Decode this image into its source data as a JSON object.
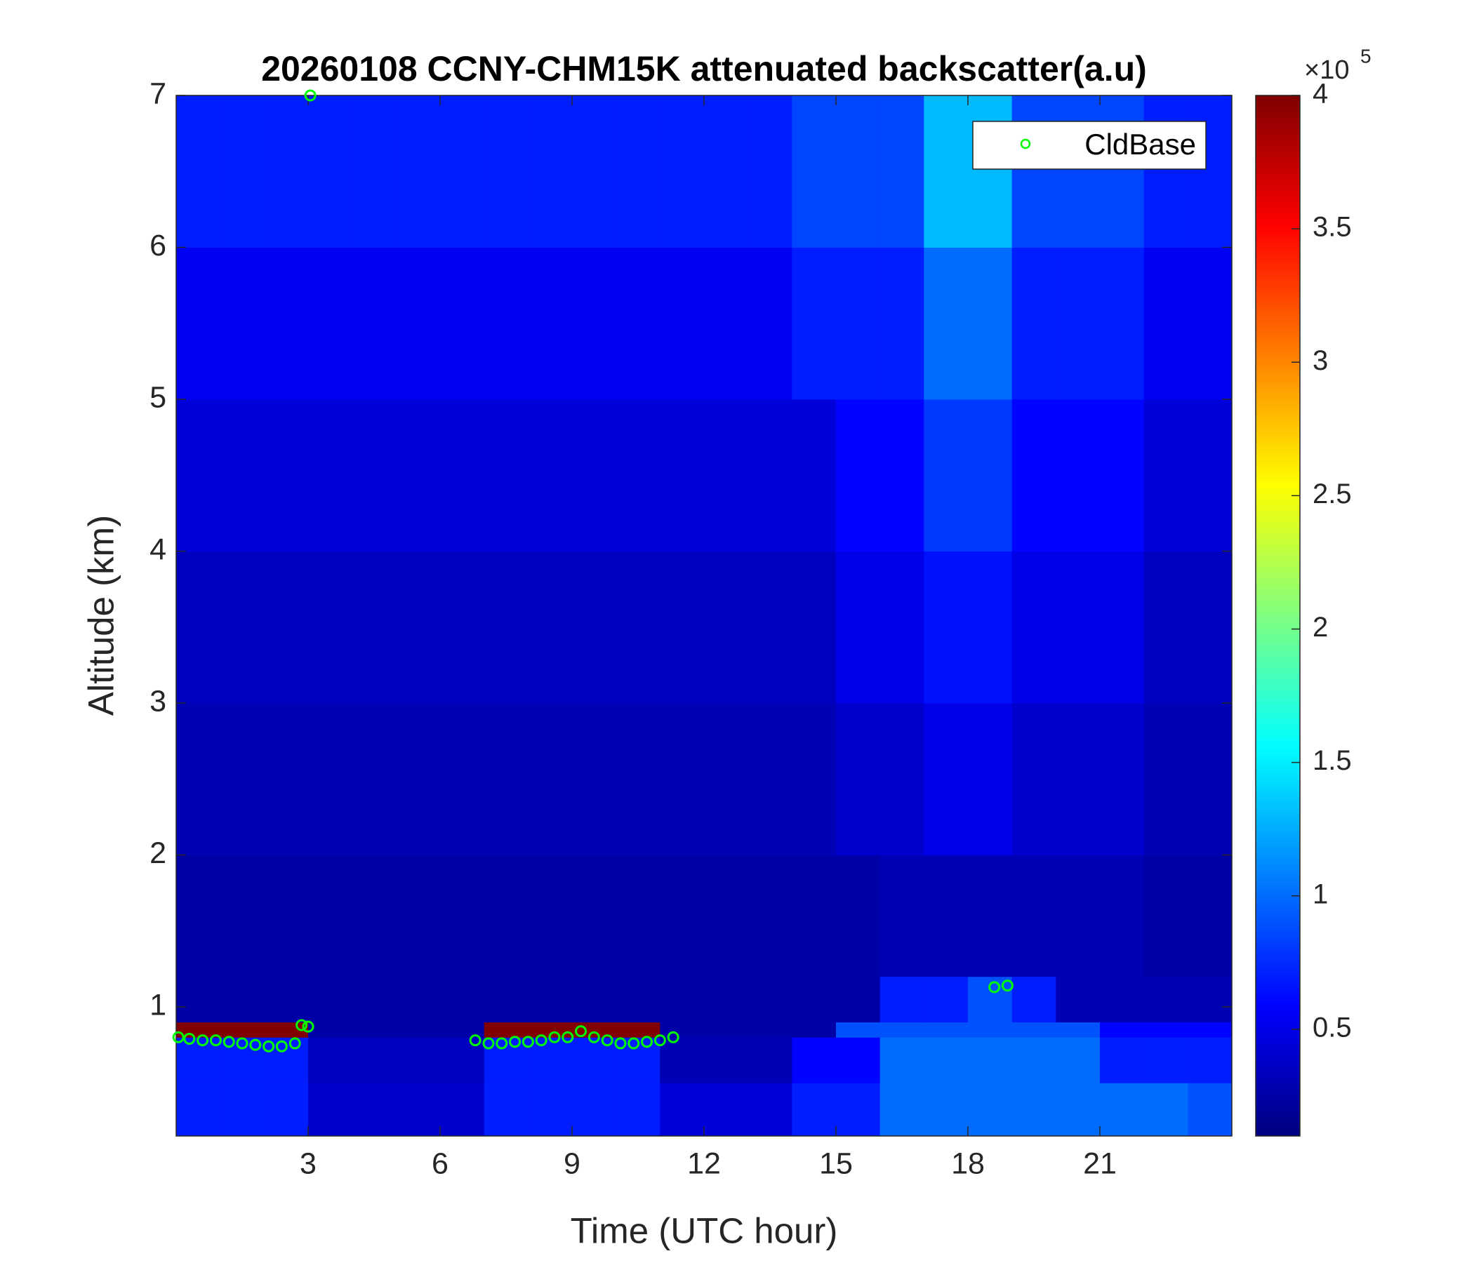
{
  "chart_data": {
    "type": "heatmap",
    "title": "20260108 CCNY-CHM15K attenuated backscatter(a.u)",
    "xlabel": "Time (UTC hour)",
    "ylabel": "Altitude (km)",
    "xlim": [
      0,
      24
    ],
    "ylim": [
      0.15,
      7
    ],
    "xticks": [
      3,
      6,
      9,
      12,
      15,
      18,
      21
    ],
    "yticks": [
      1,
      2,
      3,
      4,
      5,
      6,
      7
    ],
    "x_edges": [
      0,
      1,
      2,
      3,
      4,
      5,
      6,
      7,
      8,
      9,
      10,
      11,
      12,
      13,
      14,
      15,
      16,
      17,
      18,
      19,
      20,
      21,
      22,
      23,
      24
    ],
    "y_edges": [
      0.15,
      0.5,
      0.8,
      0.9,
      1.2,
      2,
      3,
      4,
      5,
      6,
      7
    ],
    "z": [
      [
        70000,
        70000,
        70000,
        40000,
        40000,
        40000,
        40000,
        70000,
        70000,
        70000,
        70000,
        45000,
        45000,
        45000,
        70000,
        70000,
        100000,
        100000,
        100000,
        100000,
        100000,
        100000,
        100000,
        90000
      ],
      [
        70000,
        70000,
        70000,
        35000,
        35000,
        35000,
        35000,
        70000,
        70000,
        70000,
        70000,
        30000,
        30000,
        30000,
        60000,
        60000,
        100000,
        100000,
        100000,
        100000,
        100000,
        70000,
        70000,
        70000
      ],
      [
        400000,
        400000,
        400000,
        25000,
        25000,
        25000,
        25000,
        400000,
        400000,
        400000,
        400000,
        25000,
        25000,
        25000,
        25000,
        90000,
        90000,
        90000,
        90000,
        90000,
        90000,
        60000,
        60000,
        60000
      ],
      [
        25000,
        25000,
        25000,
        25000,
        25000,
        25000,
        25000,
        25000,
        25000,
        25000,
        25000,
        25000,
        25000,
        25000,
        25000,
        25000,
        70000,
        70000,
        90000,
        70000,
        30000,
        30000,
        30000,
        30000
      ],
      [
        25000,
        25000,
        25000,
        25000,
        25000,
        25000,
        25000,
        25000,
        25000,
        25000,
        25000,
        25000,
        25000,
        25000,
        25000,
        25000,
        30000,
        30000,
        30000,
        30000,
        30000,
        30000,
        25000,
        25000
      ],
      [
        30000,
        30000,
        30000,
        30000,
        30000,
        30000,
        30000,
        30000,
        30000,
        30000,
        30000,
        30000,
        30000,
        30000,
        30000,
        40000,
        40000,
        50000,
        50000,
        40000,
        40000,
        40000,
        30000,
        30000
      ],
      [
        35000,
        35000,
        35000,
        35000,
        35000,
        35000,
        35000,
        35000,
        35000,
        35000,
        35000,
        35000,
        35000,
        35000,
        35000,
        50000,
        50000,
        65000,
        65000,
        50000,
        50000,
        50000,
        35000,
        35000
      ],
      [
        45000,
        45000,
        45000,
        45000,
        45000,
        45000,
        45000,
        45000,
        45000,
        45000,
        45000,
        45000,
        45000,
        45000,
        45000,
        60000,
        60000,
        80000,
        80000,
        60000,
        60000,
        60000,
        45000,
        45000
      ],
      [
        55000,
        55000,
        55000,
        55000,
        55000,
        55000,
        55000,
        55000,
        55000,
        55000,
        55000,
        55000,
        55000,
        55000,
        70000,
        70000,
        70000,
        100000,
        100000,
        70000,
        70000,
        70000,
        55000,
        55000
      ],
      [
        70000,
        70000,
        70000,
        70000,
        70000,
        70000,
        70000,
        70000,
        70000,
        70000,
        70000,
        70000,
        70000,
        70000,
        85000,
        85000,
        85000,
        130000,
        130000,
        85000,
        85000,
        85000,
        70000,
        70000
      ]
    ],
    "colorbar": {
      "clim": [
        10000,
        400000
      ],
      "colormap": "jet",
      "multiplier": "×10",
      "exponent": "5",
      "ticks": [
        {
          "value": 50000,
          "label": "0.5"
        },
        {
          "value": 100000,
          "label": "1"
        },
        {
          "value": 150000,
          "label": "1.5"
        },
        {
          "value": 200000,
          "label": "2"
        },
        {
          "value": 250000,
          "label": "2.5"
        },
        {
          "value": 300000,
          "label": "3"
        },
        {
          "value": 350000,
          "label": "3.5"
        },
        {
          "value": 400000,
          "label": "4"
        }
      ]
    },
    "legend": "upper right",
    "series": [
      {
        "name": "CldBase",
        "color": "#00ff00",
        "x": [
          0.05,
          0.3,
          0.6,
          0.9,
          1.2,
          1.5,
          1.8,
          2.1,
          2.4,
          2.7,
          2.85,
          3.0,
          3.05,
          6.8,
          7.1,
          7.4,
          7.7,
          8.0,
          8.3,
          8.6,
          8.9,
          9.2,
          9.5,
          9.8,
          10.1,
          10.4,
          10.7,
          11.0,
          11.3,
          18.6,
          18.9
        ],
        "y": [
          0.8,
          0.79,
          0.78,
          0.78,
          0.77,
          0.76,
          0.75,
          0.74,
          0.74,
          0.76,
          0.88,
          0.87,
          7.0,
          0.78,
          0.76,
          0.76,
          0.77,
          0.77,
          0.78,
          0.8,
          0.8,
          0.84,
          0.8,
          0.78,
          0.76,
          0.76,
          0.77,
          0.78,
          0.8,
          1.13,
          1.14
        ]
      }
    ]
  }
}
